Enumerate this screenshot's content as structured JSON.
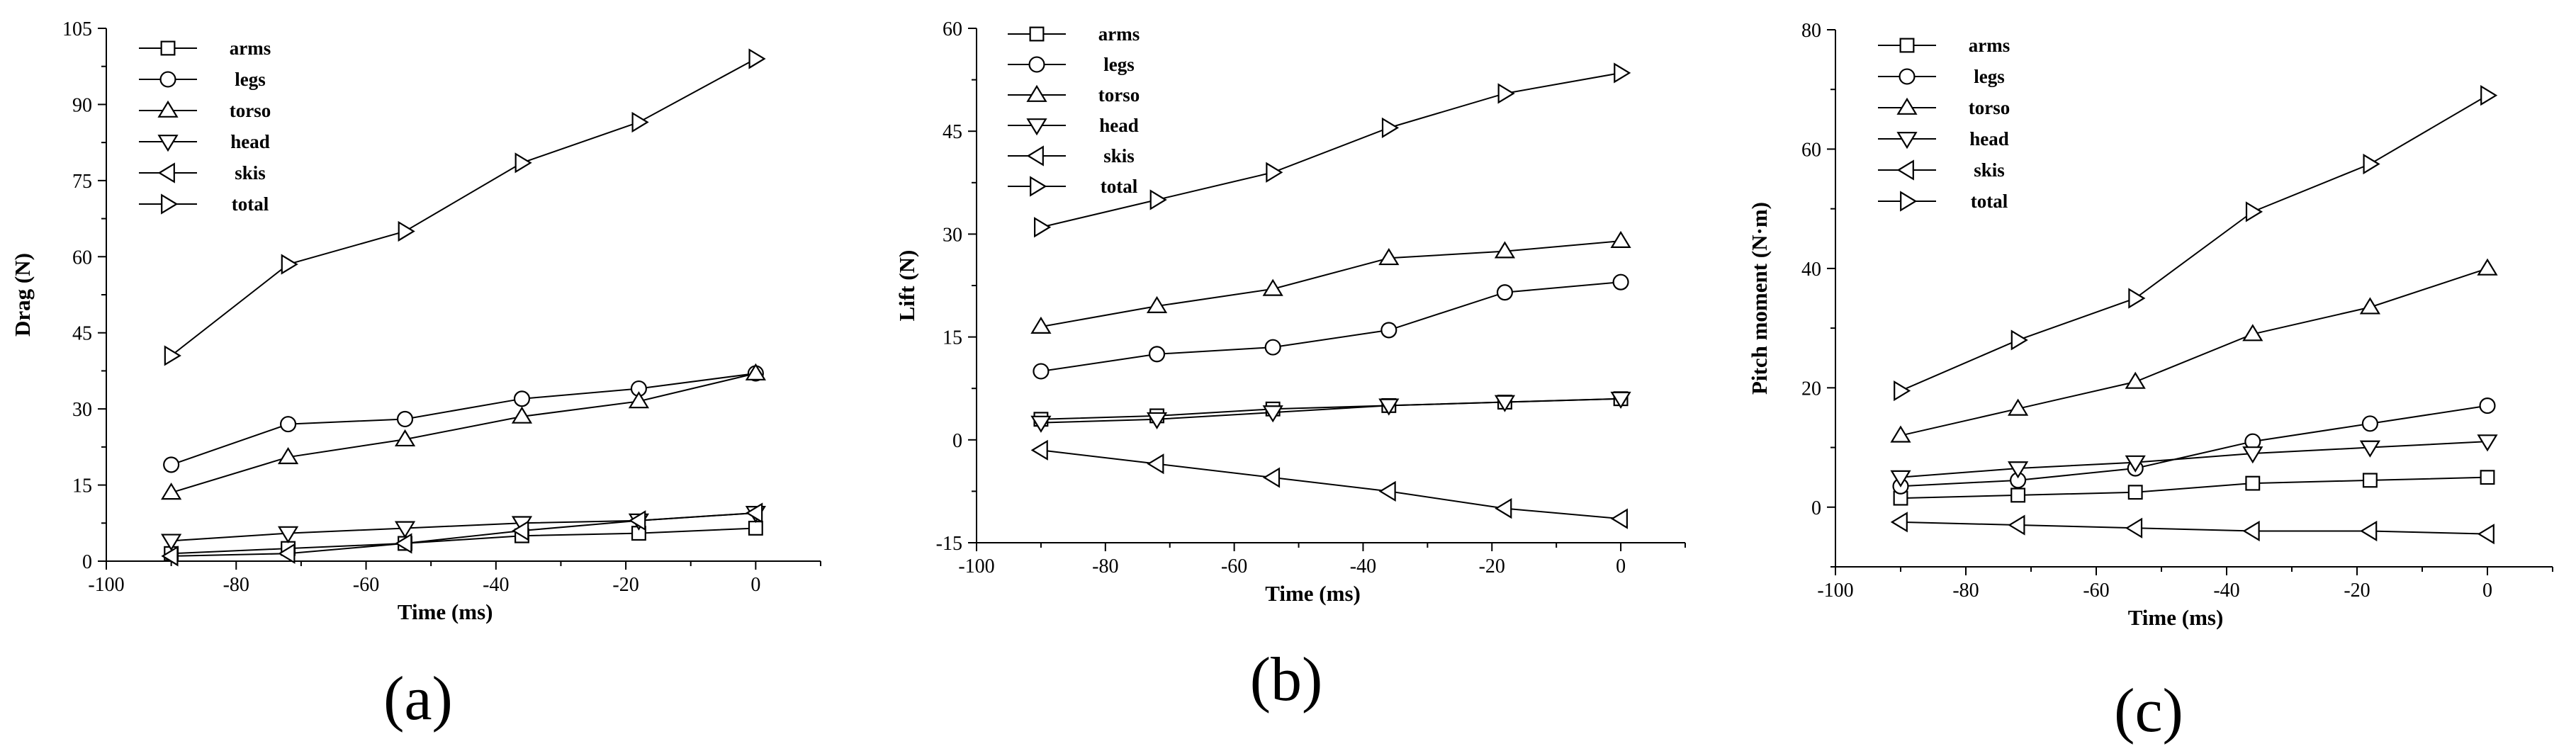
{
  "chart_data": [
    {
      "type": "line",
      "panel_label": "(a)",
      "xlabel": "Time (ms)",
      "ylabel": "Drag (N)",
      "xlim": [
        -100,
        10
      ],
      "ylim": [
        0,
        105
      ],
      "xticks": [
        -100,
        -80,
        -60,
        -40,
        -20,
        0
      ],
      "yticks": [
        0,
        15,
        30,
        45,
        60,
        75,
        90,
        105
      ],
      "legend_position": "top-left",
      "x": [
        -90,
        -72,
        -54,
        -36,
        -18,
        0
      ],
      "series": [
        {
          "name": "arms",
          "marker": "square",
          "values": [
            1.5,
            2.5,
            3.5,
            5,
            5.5,
            6.5
          ]
        },
        {
          "name": "legs",
          "marker": "circle",
          "values": [
            19,
            27,
            28,
            32,
            34,
            37
          ]
        },
        {
          "name": "torso",
          "marker": "triangle-up",
          "values": [
            13.5,
            20.5,
            24,
            28.5,
            31.5,
            37
          ]
        },
        {
          "name": "head",
          "marker": "triangle-down",
          "values": [
            4,
            5.5,
            6.5,
            7.5,
            8,
            9.5
          ]
        },
        {
          "name": "skis",
          "marker": "triangle-left",
          "values": [
            1,
            1.5,
            3.5,
            6,
            8,
            9.5
          ]
        },
        {
          "name": "total",
          "marker": "triangle-right",
          "values": [
            40.5,
            58.5,
            65,
            78.5,
            86.5,
            99
          ]
        }
      ]
    },
    {
      "type": "line",
      "panel_label": "(b)",
      "xlabel": "Time (ms)",
      "ylabel": "Lift (N)",
      "xlim": [
        -100,
        10
      ],
      "ylim": [
        -15,
        60
      ],
      "xticks": [
        -100,
        -80,
        -60,
        -40,
        -20,
        0
      ],
      "yticks": [
        -15,
        0,
        15,
        30,
        45,
        60
      ],
      "legend_position": "top-left",
      "x": [
        -90,
        -72,
        -54,
        -36,
        -18,
        0
      ],
      "series": [
        {
          "name": "arms",
          "marker": "square",
          "values": [
            3,
            3.5,
            4.5,
            5,
            5.5,
            6
          ]
        },
        {
          "name": "legs",
          "marker": "circle",
          "values": [
            10,
            12.5,
            13.5,
            16,
            21.5,
            23
          ]
        },
        {
          "name": "torso",
          "marker": "triangle-up",
          "values": [
            16.5,
            19.5,
            22,
            26.5,
            27.5,
            29
          ]
        },
        {
          "name": "head",
          "marker": "triangle-down",
          "values": [
            2.5,
            3,
            4,
            5,
            5.5,
            6
          ]
        },
        {
          "name": "skis",
          "marker": "triangle-left",
          "values": [
            -1.5,
            -3.5,
            -5.5,
            -7.5,
            -10,
            -11.5
          ]
        },
        {
          "name": "total",
          "marker": "triangle-right",
          "values": [
            31,
            35,
            39,
            45.5,
            50.5,
            53.5
          ]
        }
      ]
    },
    {
      "type": "line",
      "panel_label": "(c)",
      "xlabel": "Time (ms)",
      "ylabel": "Pitch moment (N·m)",
      "xlim": [
        -100,
        10
      ],
      "ylim": [
        -10,
        80
      ],
      "xticks": [
        -100,
        -80,
        -60,
        -40,
        -20,
        0
      ],
      "yticks": [
        0,
        20,
        40,
        60,
        80
      ],
      "legend_position": "top-left",
      "x": [
        -90,
        -72,
        -54,
        -36,
        -18,
        0
      ],
      "series": [
        {
          "name": "arms",
          "marker": "square",
          "values": [
            1.5,
            2,
            2.5,
            4,
            4.5,
            5
          ]
        },
        {
          "name": "legs",
          "marker": "circle",
          "values": [
            3.5,
            4.5,
            6.5,
            11,
            14,
            17
          ]
        },
        {
          "name": "torso",
          "marker": "triangle-up",
          "values": [
            12,
            16.5,
            21,
            29,
            33.5,
            40
          ]
        },
        {
          "name": "head",
          "marker": "triangle-down",
          "values": [
            5,
            6.5,
            7.5,
            9,
            10,
            11
          ]
        },
        {
          "name": "skis",
          "marker": "triangle-left",
          "values": [
            -2.5,
            -3,
            -3.5,
            -4,
            -4,
            -4.5
          ]
        },
        {
          "name": "total",
          "marker": "triangle-right",
          "values": [
            19.5,
            28,
            35,
            49.5,
            57.5,
            69
          ]
        }
      ]
    }
  ]
}
